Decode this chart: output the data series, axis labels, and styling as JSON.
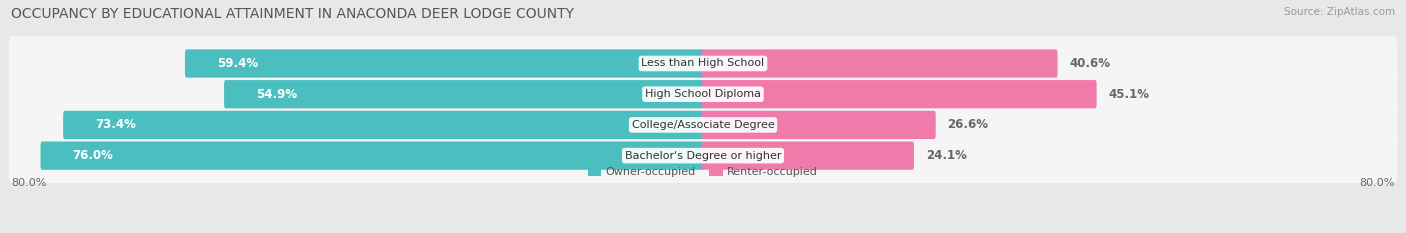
{
  "title": "OCCUPANCY BY EDUCATIONAL ATTAINMENT IN ANACONDA DEER LODGE COUNTY",
  "source": "Source: ZipAtlas.com",
  "categories": [
    "Less than High School",
    "High School Diploma",
    "College/Associate Degree",
    "Bachelor's Degree or higher"
  ],
  "owner_values": [
    59.4,
    54.9,
    73.4,
    76.0
  ],
  "renter_values": [
    40.6,
    45.1,
    26.6,
    24.1
  ],
  "owner_color": "#4BBFBF",
  "renter_color": "#F07BAA",
  "renter_color_light": "#F9BBCF",
  "owner_label": "Owner-occupied",
  "renter_label": "Renter-occupied",
  "axis_max": 80.0,
  "x_left_label": "80.0%",
  "x_right_label": "80.0%",
  "background_color": "#e8e8e8",
  "bar_bg_color": "#f5f5f5",
  "title_fontsize": 10,
  "source_fontsize": 7.5,
  "bar_label_fontsize": 8.5,
  "category_fontsize": 8,
  "axis_label_fontsize": 8
}
